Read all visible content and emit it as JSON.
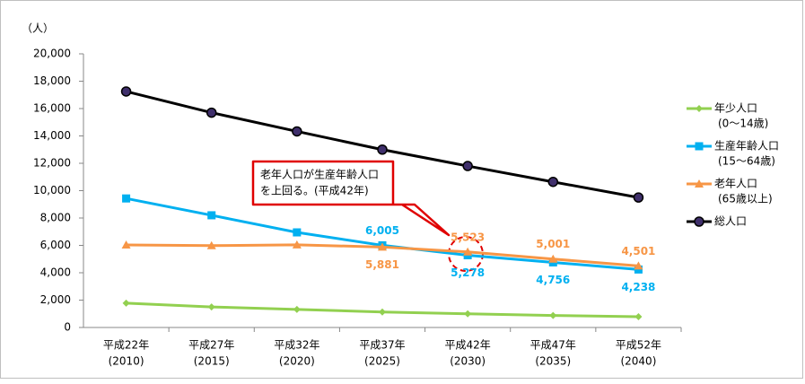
{
  "chart_data": {
    "type": "line",
    "y_unit": "（人）",
    "categories": [
      [
        "平成22年",
        "(2010)"
      ],
      [
        "平成27年",
        "(2015)"
      ],
      [
        "平成32年",
        "(2020)"
      ],
      [
        "平成37年",
        "(2025)"
      ],
      [
        "平成42年",
        "(2030)"
      ],
      [
        "平成47年",
        "(2035)"
      ],
      [
        "平成52年",
        "(2040)"
      ]
    ],
    "ylim": [
      0,
      20000
    ],
    "yticks": [
      0,
      {
        "value": 2000,
        "label": "2,000"
      },
      {
        "value": 4000,
        "label": "4,000"
      },
      {
        "value": 6000,
        "label": "6,000"
      },
      {
        "value": 8000,
        "label": "8,000"
      },
      {
        "value": 10000,
        "label": "10,000"
      },
      {
        "value": 12000,
        "label": "12,000"
      },
      {
        "value": 14000,
        "label": "14,000"
      },
      {
        "value": 16000,
        "label": "16,000"
      },
      {
        "value": 18000,
        "label": "18,000"
      },
      {
        "value": 20000,
        "label": "20,000"
      }
    ],
    "legend": "right",
    "series": [
      {
        "name": "年少人口",
        "sub": "(0～14歳)",
        "color": "#92d050",
        "marker": "diamond",
        "values": [
          1780,
          1500,
          1320,
          1130,
          1000,
          880,
          790
        ]
      },
      {
        "name": "生産年齢人口",
        "sub": "(15～64歳)",
        "color": "#00b0f0",
        "marker": "square",
        "values": [
          9430,
          8200,
          6950,
          6005,
          5278,
          4756,
          4238
        ],
        "value_labels": [
          null,
          null,
          null,
          "6,005",
          "5,278",
          "4,756",
          "4,238"
        ]
      },
      {
        "name": "老年人口",
        "sub": "(65歳以上)",
        "color": "#f79646",
        "marker": "triangle",
        "values": [
          6030,
          5980,
          6040,
          5881,
          5523,
          5001,
          4501
        ],
        "value_labels": [
          null,
          null,
          null,
          "5,881",
          "5,523",
          "5,001",
          "4,501"
        ]
      },
      {
        "name": "総人口",
        "color": "#000000",
        "marker": "circle",
        "values": [
          17250,
          15700,
          14330,
          13000,
          11800,
          10640,
          9500
        ]
      }
    ],
    "annotation": {
      "lines": [
        "老年人口が生産年齢人口",
        "を上回る。(平成42年)"
      ]
    }
  }
}
